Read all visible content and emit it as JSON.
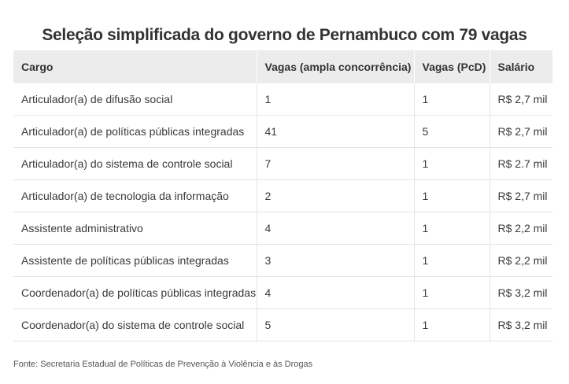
{
  "chart_data": {
    "type": "table",
    "title": "Seleção simplificada do governo de Pernambuco com 79 vagas",
    "columns": [
      "Cargo",
      "Vagas (ampla concorrência)",
      "Vagas (PcD)",
      "Salário"
    ],
    "rows": [
      [
        "Articulador(a) de difusão social",
        "1",
        "1",
        "R$ 2,7 mil"
      ],
      [
        "Articulador(a) de políticas públicas integradas",
        "41",
        "5",
        "R$ 2,7 mil"
      ],
      [
        "Articulador(a) do sistema de controle social",
        "7",
        "1",
        "R$ 2.7 mil"
      ],
      [
        "Articulador(a) de tecnologia da informação",
        "2",
        "1",
        "R$ 2,7 mil"
      ],
      [
        "Assistente administrativo",
        "4",
        "1",
        "R$ 2,2 mil"
      ],
      [
        "Assistente de políticas públicas integradas",
        "3",
        "1",
        "R$ 2,2 mil"
      ],
      [
        "Coordenador(a) de políticas públicas integradas",
        "4",
        "1",
        "R$ 3,2 mil"
      ],
      [
        "Coordenador(a) do sistema de controle social",
        "5",
        "1",
        "R$ 3,2 mil"
      ]
    ],
    "source": "Fonte: Secretaria Estadual de Políticas de Prevenção à Violência e às Drogas"
  }
}
